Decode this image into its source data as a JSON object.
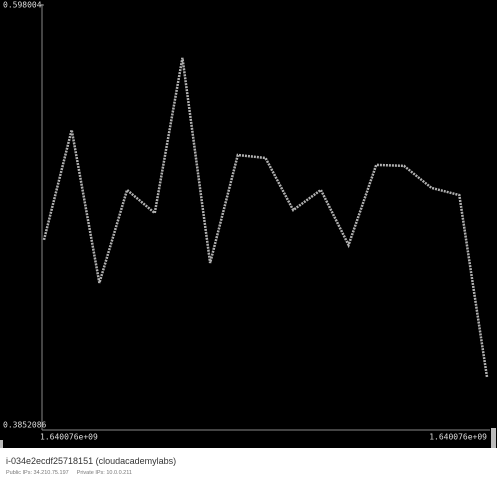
{
  "chart_data": {
    "type": "line",
    "categories": [
      "1.640076e+09",
      null,
      null,
      null,
      null,
      null,
      null,
      null,
      null,
      null,
      null,
      null,
      null,
      null,
      null,
      null,
      "1.640076e+09"
    ],
    "series": [
      {
        "color": "#b0b0b0",
        "values": [
          0.479,
          0.5347,
          0.4572,
          0.5043,
          0.4926,
          0.5712,
          0.4673,
          0.522,
          0.5205,
          0.4941,
          0.5043,
          0.4764,
          0.517,
          0.5165,
          0.5053,
          0.5017,
          0.4095
        ]
      }
    ],
    "ylim": [
      0.3852086,
      0.598004
    ],
    "yticks": [
      0.3852086,
      0.598004
    ]
  },
  "footer": {
    "instance": "i-034e2ecdf25718151 (cloudacademylabs)",
    "public_ips": "Public IPs: 34.210.75.197",
    "private_ips": "Private IPs: 10.0.0.211"
  }
}
